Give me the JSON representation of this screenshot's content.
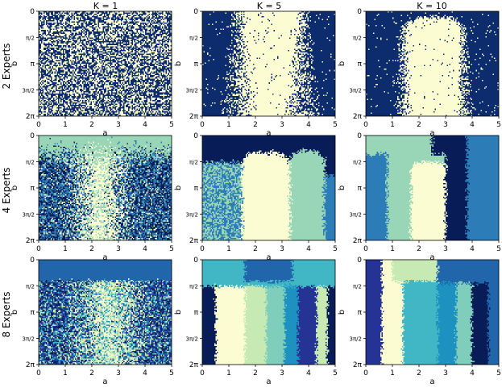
{
  "figure": {
    "column_titles": [
      "K = 1",
      "K = 5",
      "K = 10"
    ],
    "row_labels": [
      "2 Experts",
      "4 Experts",
      "8 Experts"
    ]
  },
  "colors": {
    "2": [
      "#0c2c6e",
      "#fbfcd2"
    ],
    "4": [
      "#081d58",
      "#2b7cb7",
      "#99d6b8",
      "#fbfcd2"
    ],
    "8": [
      "#081d58",
      "#253494",
      "#2166ab",
      "#1d91c0",
      "#41b6c4",
      "#7fcdbb",
      "#c7e9b4",
      "#fbfcd2"
    ]
  },
  "chart_data": [
    {
      "type": "heatmap",
      "row": 0,
      "col": 0,
      "experts": 2,
      "K": 1,
      "title": "K = 1",
      "xlabel": "a",
      "ylabel": "b",
      "xlim": [
        0,
        5
      ],
      "ylim": [
        0,
        6.2832
      ],
      "xticks": [
        "0",
        "1",
        "2",
        "3",
        "4",
        "5"
      ],
      "yticks": [
        "0",
        "π/2",
        "π",
        "3π/2",
        "2π"
      ],
      "pattern": "random noise, both experts evenly mixed"
    },
    {
      "type": "heatmap",
      "row": 0,
      "col": 1,
      "experts": 2,
      "K": 5,
      "title": "K = 5",
      "xlabel": "a",
      "ylabel": "b",
      "xlim": [
        0,
        5
      ],
      "ylim": [
        0,
        6.2832
      ],
      "xticks": [
        "0",
        "1",
        "2",
        "3",
        "4",
        "5"
      ],
      "yticks": [
        "0",
        "π/2",
        "π",
        "3π/2",
        "2π"
      ],
      "pattern": "light band for a ≈ 1.3–3.8, dark elsewhere"
    },
    {
      "type": "heatmap",
      "row": 0,
      "col": 2,
      "experts": 2,
      "K": 10,
      "title": "K = 10",
      "xlabel": "a",
      "ylabel": "b",
      "xlim": [
        0,
        5
      ],
      "ylim": [
        0,
        6.2832
      ],
      "xticks": [
        "0",
        "1",
        "2",
        "3",
        "4",
        "5"
      ],
      "yticks": [
        "0",
        "π/2",
        "π",
        "3π/2",
        "2π"
      ],
      "pattern": "light dome for a ≈ 1.4–3.7, rounded top near b ≈ 0.4"
    },
    {
      "type": "heatmap",
      "row": 1,
      "col": 0,
      "experts": 4,
      "K": 1,
      "xlabel": "a",
      "ylabel": "b",
      "xlim": [
        0,
        5
      ],
      "ylim": [
        0,
        6.2832
      ],
      "xticks": [
        "0",
        "1",
        "2",
        "3",
        "4",
        "5"
      ],
      "yticks": [
        "0",
        "π/2",
        "π",
        "3π/2",
        "2π"
      ],
      "pattern": "mint top band, noisy dark/blue sides, light center near a ≈ 2.3"
    },
    {
      "type": "heatmap",
      "row": 1,
      "col": 1,
      "experts": 4,
      "K": 5,
      "xlabel": "a",
      "ylabel": "b",
      "xlim": [
        0,
        5
      ],
      "ylim": [
        0,
        6.2832
      ],
      "xticks": [
        "0",
        "1",
        "2",
        "3",
        "4",
        "5"
      ],
      "yticks": [
        "0",
        "π/2",
        "π",
        "3π/2",
        "2π"
      ],
      "pattern": "dark top, light dome a ≈ 1.5–3.3, mint dome a ≈ 3.3–4.6"
    },
    {
      "type": "heatmap",
      "row": 1,
      "col": 2,
      "experts": 4,
      "K": 10,
      "xlabel": "a",
      "ylabel": "b",
      "xlim": [
        0,
        5
      ],
      "ylim": [
        0,
        6.2832
      ],
      "xticks": [
        "0",
        "1",
        "2",
        "3",
        "4",
        "5"
      ],
      "yticks": [
        "0",
        "π/2",
        "π",
        "3π/2",
        "2π"
      ],
      "pattern": "vertical bands: blue, mint, light, dark, blue"
    },
    {
      "type": "heatmap",
      "row": 2,
      "col": 0,
      "experts": 8,
      "K": 1,
      "xlabel": "a",
      "ylabel": "b",
      "xlim": [
        0,
        5
      ],
      "ylim": [
        0,
        6.2832
      ],
      "xticks": [
        "0",
        "1",
        "2",
        "3",
        "4",
        "5"
      ],
      "yticks": [
        "0",
        "π/2",
        "π",
        "3π/2",
        "2π"
      ],
      "pattern": "solid blue top, noisy mixture below"
    },
    {
      "type": "heatmap",
      "row": 2,
      "col": 1,
      "experts": 8,
      "K": 5,
      "xlabel": "a",
      "ylabel": "b",
      "xlim": [
        0,
        5
      ],
      "ylim": [
        0,
        6.2832
      ],
      "xticks": [
        "0",
        "1",
        "2",
        "3",
        "4",
        "5"
      ],
      "yticks": [
        "0",
        "π/2",
        "π",
        "3π/2",
        "2π"
      ],
      "pattern": "teal top, multiple vertical region bands"
    },
    {
      "type": "heatmap",
      "row": 2,
      "col": 2,
      "experts": 8,
      "K": 10,
      "xlabel": "a",
      "ylabel": "b",
      "xlim": [
        0,
        5
      ],
      "ylim": [
        0,
        6.2832
      ],
      "xticks": [
        "0",
        "1",
        "2",
        "3",
        "4",
        "5"
      ],
      "yticks": [
        "0",
        "π/2",
        "π",
        "3π/2",
        "2π"
      ],
      "pattern": "vertical region bands with pale top-center area"
    }
  ]
}
